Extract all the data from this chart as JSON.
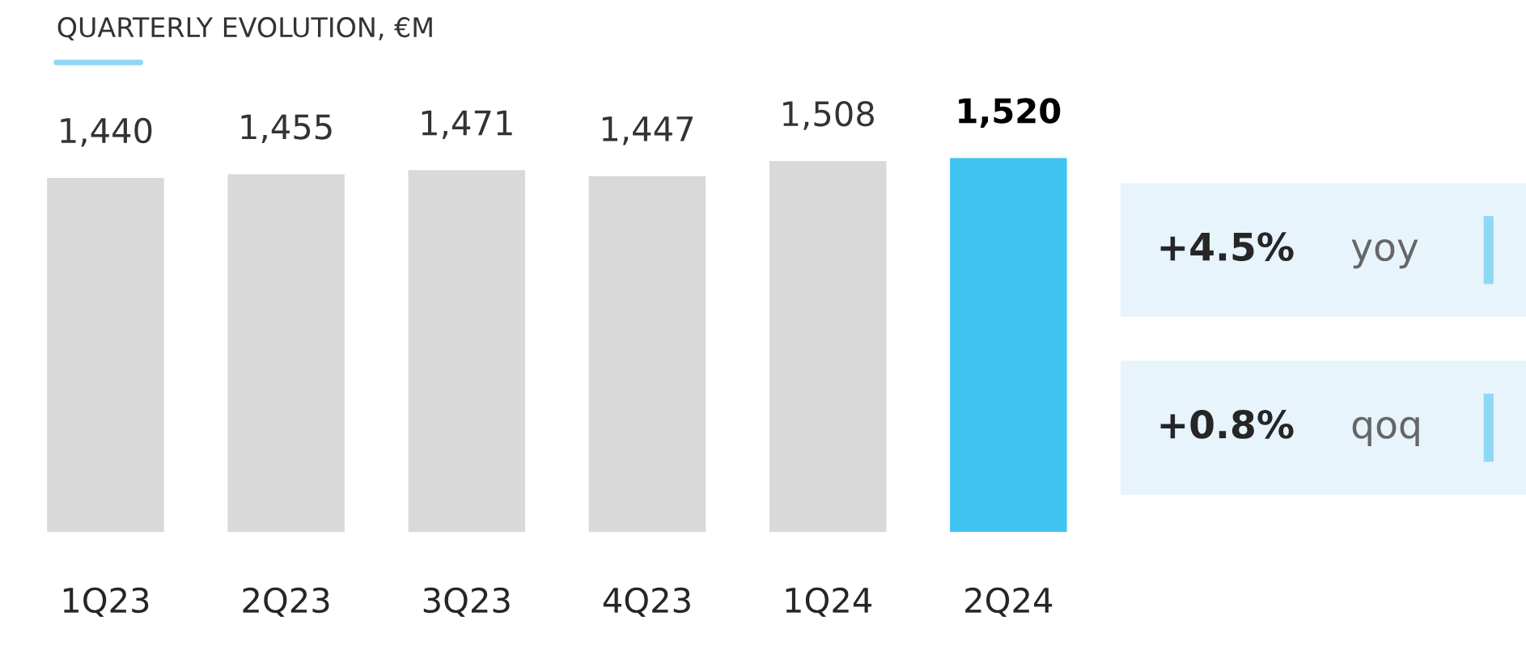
{
  "chart_data": {
    "type": "bar",
    "title": "QUARTERLY EVOLUTION, €M",
    "categories": [
      "1Q23",
      "2Q23",
      "3Q23",
      "4Q23",
      "1Q24",
      "2Q24"
    ],
    "values": [
      1440,
      1455,
      1471,
      1447,
      1508,
      1520
    ],
    "colors": [
      "#d9d9d9",
      "#d9d9d9",
      "#d9d9d9",
      "#d9d9d9",
      "#d9d9d9",
      "#40c4f2"
    ],
    "value_labels": [
      "1,440",
      "1,455",
      "1,471",
      "1,447",
      "1,508",
      "1,520"
    ],
    "annotations": [
      "+4.5% yoy",
      "+0.8% qoq"
    ]
  }
}
